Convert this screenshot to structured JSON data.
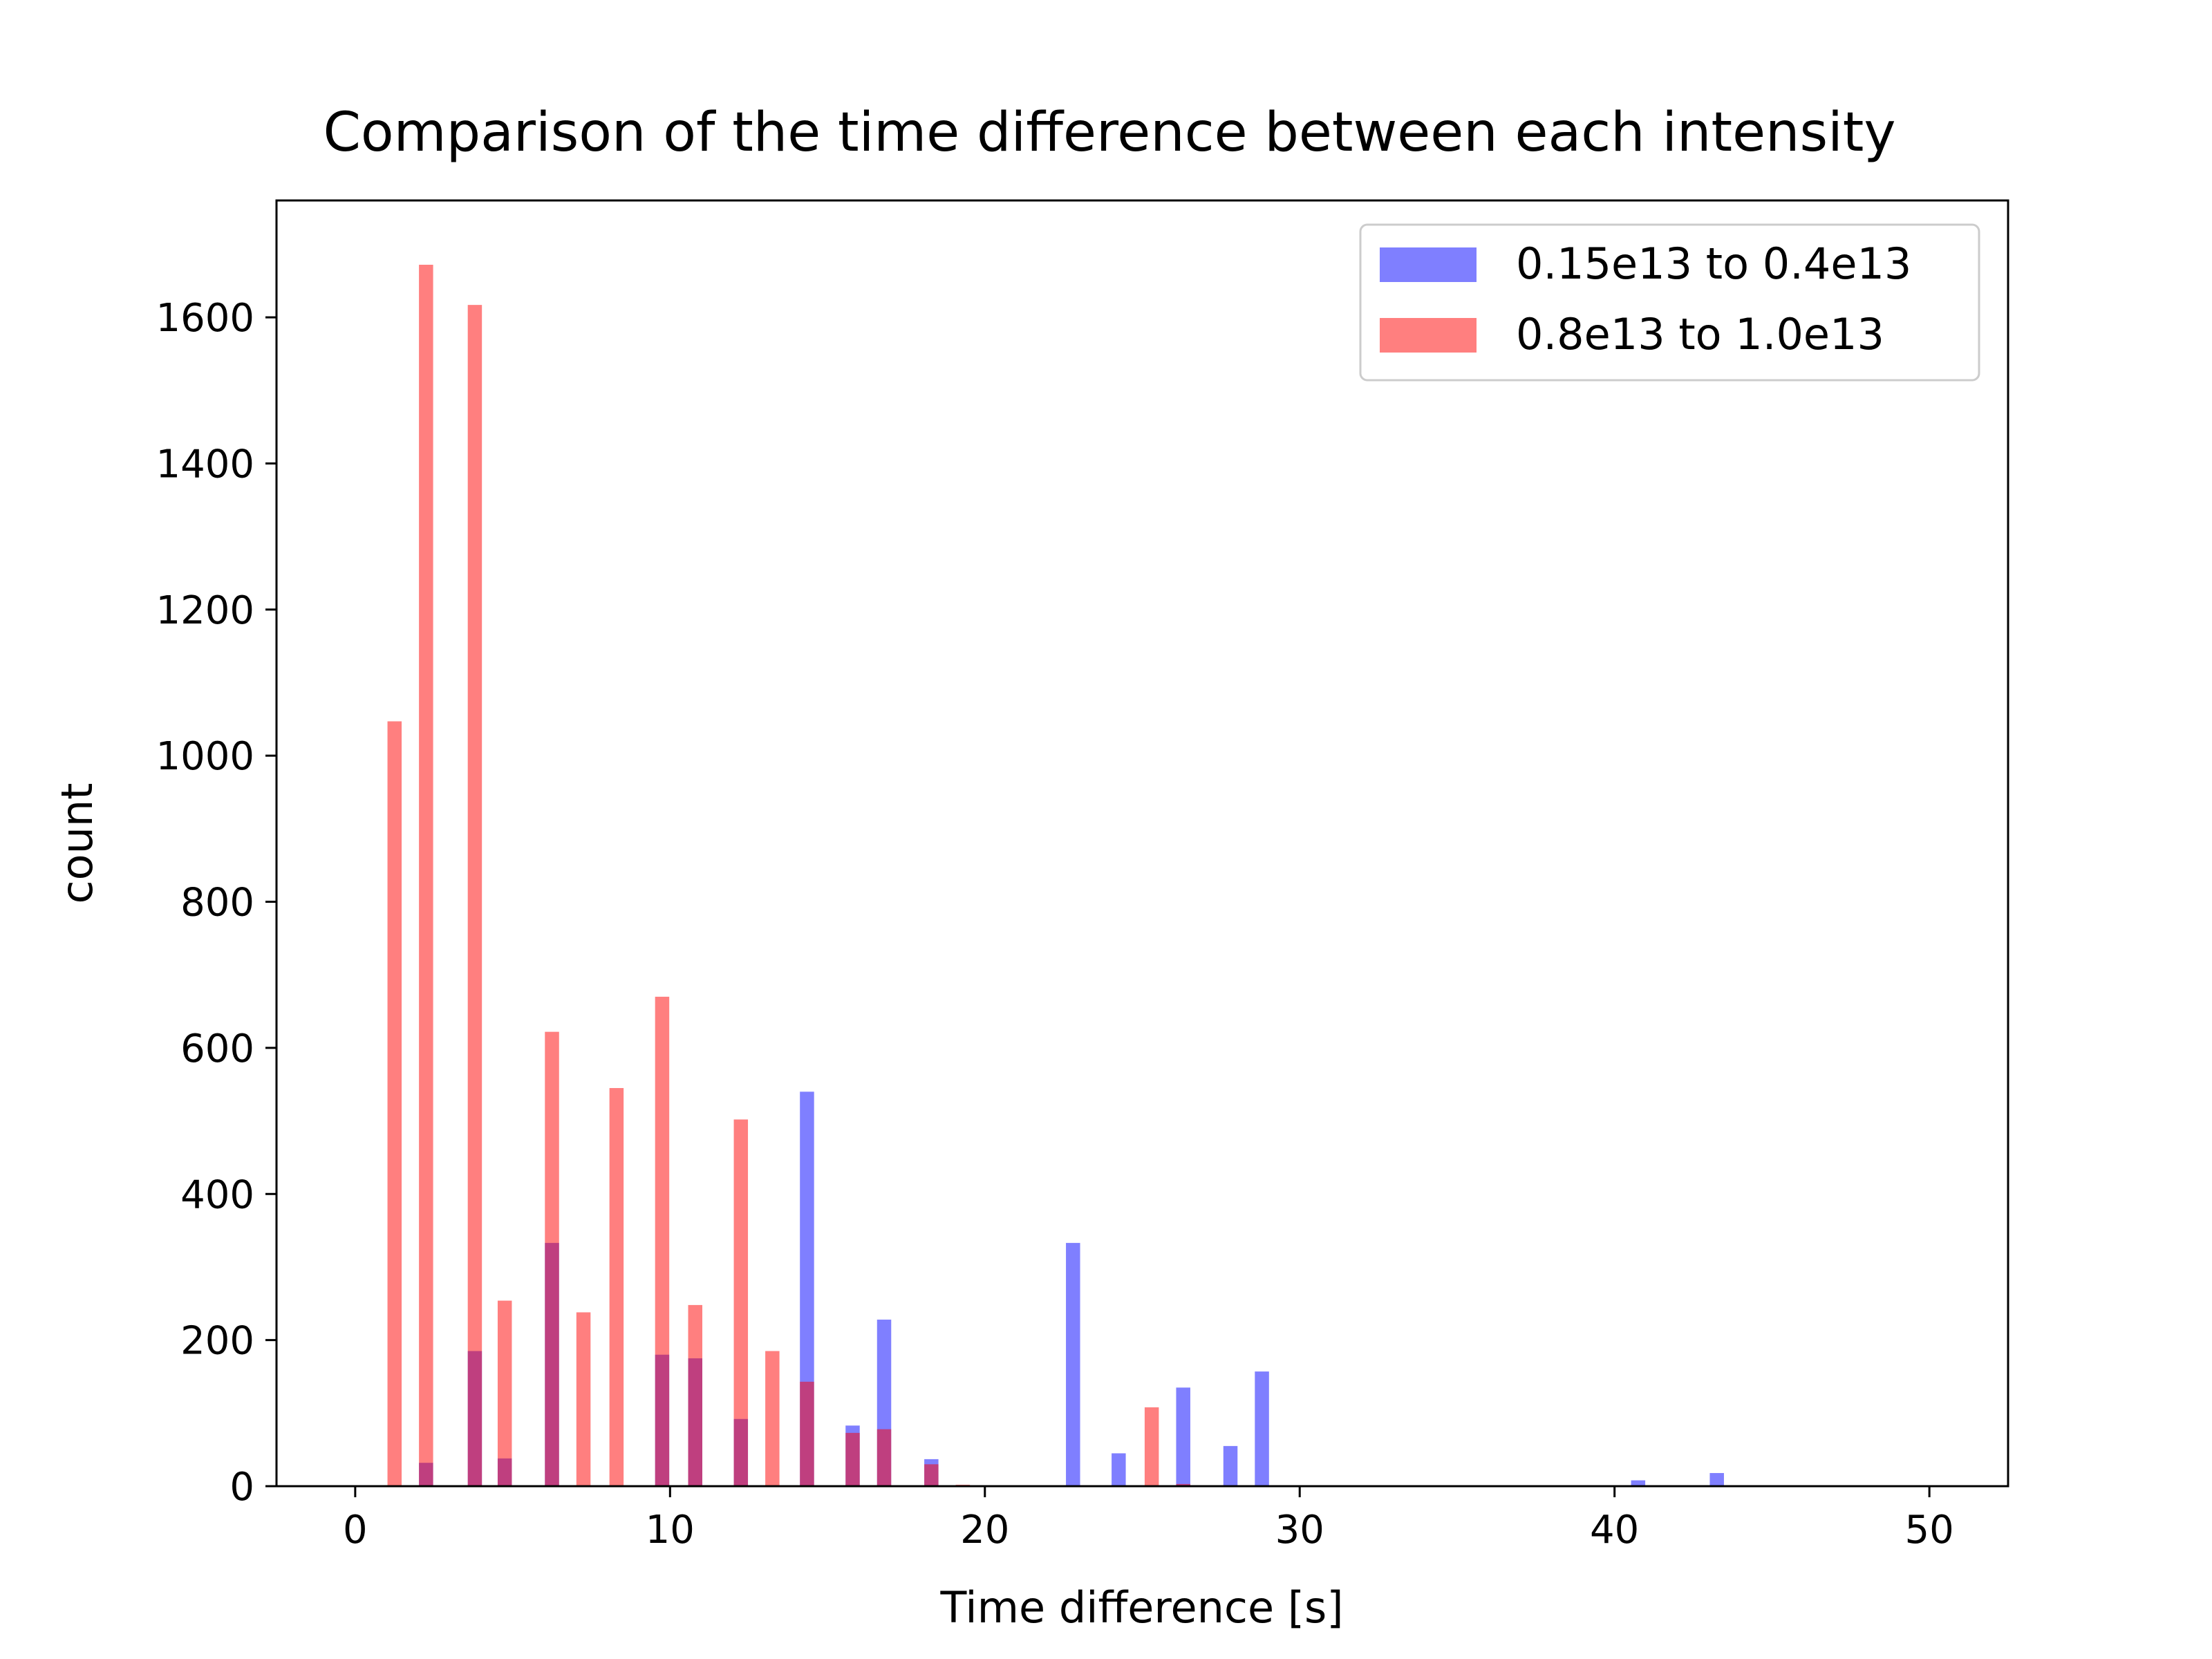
{
  "chart_data": {
    "type": "bar",
    "title": "Comparison of the time difference between each intensity",
    "xlabel": "Time difference [s]",
    "ylabel": "count",
    "xlim": [
      -2.5,
      52.5
    ],
    "ylim": [
      0,
      1760
    ],
    "xticks": [
      0,
      10,
      20,
      30,
      40,
      50
    ],
    "yticks": [
      0,
      200,
      400,
      600,
      800,
      1000,
      1200,
      1400,
      1600
    ],
    "bar_width": 0.45,
    "grid": false,
    "legend_position": "top-right",
    "series": [
      {
        "name": "0.15e13 to 0.4e13",
        "color": "#0000ff",
        "opacity": 0.5,
        "x": [
          2.25,
          3.8,
          4.75,
          6.25,
          9.75,
          10.8,
          12.25,
          14.35,
          15.8,
          16.8,
          18.3,
          22.8,
          24.25,
          26.3,
          27.8,
          28.8,
          40.75,
          43.25
        ],
        "values": [
          32,
          185,
          38,
          333,
          180,
          175,
          92,
          540,
          83,
          228,
          37,
          333,
          45,
          135,
          55,
          157,
          8,
          18
        ]
      },
      {
        "name": "0.8e13 to 1.0e13",
        "color": "#ff0000",
        "opacity": 0.5,
        "x": [
          1.25,
          2.25,
          3.8,
          4.75,
          6.25,
          7.25,
          8.3,
          9.75,
          10.8,
          12.25,
          13.25,
          14.35,
          15.8,
          16.8,
          18.3,
          19.3,
          25.3,
          26.3
        ],
        "values": [
          1047,
          1672,
          1617,
          254,
          622,
          238,
          545,
          670,
          248,
          502,
          185,
          143,
          73,
          78,
          30,
          2,
          108,
          3
        ]
      }
    ]
  }
}
